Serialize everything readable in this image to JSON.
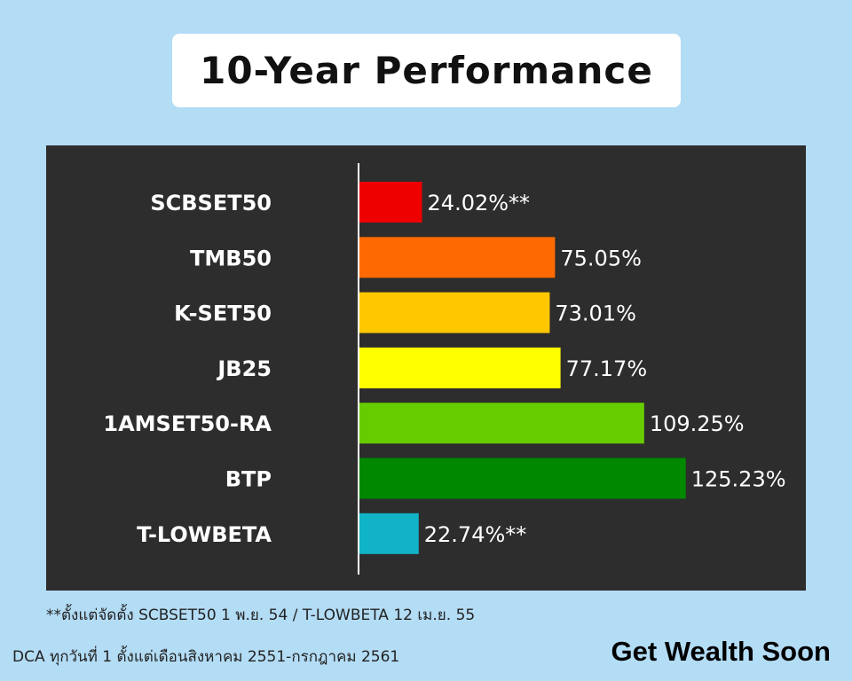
{
  "title": "10-Year Performance",
  "chart_data": {
    "type": "bar",
    "orientation": "horizontal",
    "title": "10-Year Performance",
    "categories": [
      "SCBSET50",
      "TMB50",
      "K-SET50",
      "JB25",
      "1AMSET50-RA",
      "BTP",
      "T-LOWBETA"
    ],
    "values": [
      24.02,
      75.05,
      73.01,
      77.17,
      109.25,
      125.23,
      22.74
    ],
    "value_labels": [
      "24.02%**",
      "75.05%",
      "73.01%",
      "77.17%",
      "109.25%",
      "125.23%",
      "22.74%**"
    ],
    "colors": [
      "#ee0000",
      "#ff6a00",
      "#ffc700",
      "#ffff00",
      "#66cc00",
      "#008800",
      "#11b3c6"
    ],
    "xlim": [
      0,
      126
    ],
    "grid": false,
    "legend": "none"
  },
  "footnote": "**ตั้งแต่จัดตั้ง SCBSET50 1 พ.ย. 54 / T-LOWBETA 12 เม.ย. 55",
  "dca_note": "DCA ทุกวันที่ 1 ตั้งแต่เดือนสิงหาคม 2551-กรกฎาคม 2561",
  "brand": "Get Wealth Soon",
  "colors": {
    "background": "#b3dcf5",
    "panel": "#2d2d2d",
    "title_box": "#ffffff"
  }
}
